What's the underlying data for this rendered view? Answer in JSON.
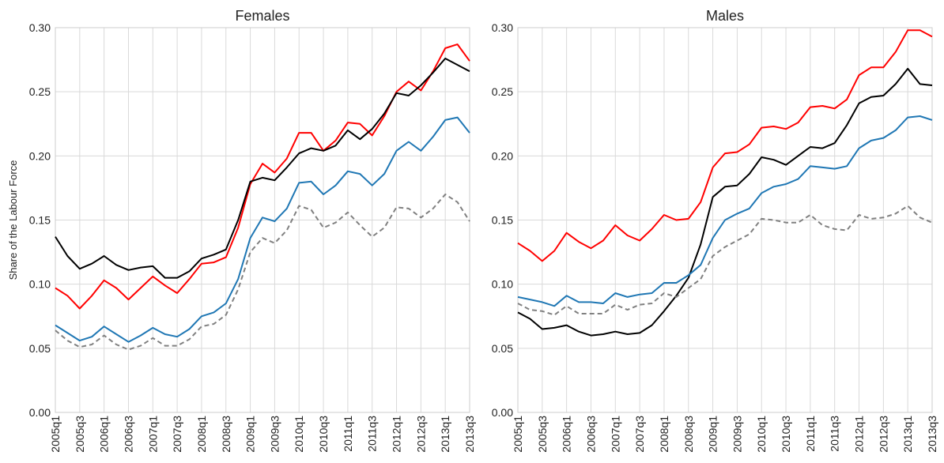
{
  "chart_data": [
    {
      "type": "line",
      "title": "Females",
      "ylabel": "Share of the Labour Force",
      "grid": true,
      "categories": [
        "2005q1",
        null,
        "2005q3",
        null,
        "2006q1",
        null,
        "2006q3",
        null,
        "2007q1",
        null,
        "2007q3",
        null,
        "2008q1",
        null,
        "2008q3",
        null,
        "2009q1",
        null,
        "2009q3",
        null,
        "2010q1",
        null,
        "2010q3",
        null,
        "2011q1",
        null,
        "2011q3",
        null,
        "2012q1",
        null,
        "2012q3",
        null,
        "2013q1",
        null,
        "2013q3"
      ],
      "ylim": [
        0,
        0.3
      ],
      "yticks": [
        {
          "value": 0,
          "label": "0.00"
        },
        {
          "value": 0.05,
          "label": "0.05"
        },
        {
          "value": 0.1,
          "label": "0.10"
        },
        {
          "value": 0.15,
          "label": "0.15"
        },
        {
          "value": 0.2,
          "label": "0.20"
        },
        {
          "value": 0.25,
          "label": "0.25"
        },
        {
          "value": 0.3,
          "label": "0.30"
        }
      ],
      "series": [
        {
          "color": "#ff0000",
          "linestyle": "solid",
          "values": [
            0.097,
            0.091,
            0.081,
            0.091,
            0.103,
            0.097,
            0.088,
            0.097,
            0.106,
            0.099,
            0.093,
            0.104,
            0.116,
            0.117,
            0.121,
            0.144,
            0.178,
            0.194,
            0.187,
            0.198,
            0.218,
            0.218,
            0.204,
            0.212,
            0.226,
            0.225,
            0.216,
            0.231,
            0.25,
            0.258,
            0.251,
            0.266,
            0.284,
            0.287,
            0.274
          ]
        },
        {
          "color": "#000000",
          "linestyle": "solid",
          "values": [
            0.137,
            0.122,
            0.112,
            0.116,
            0.122,
            0.115,
            0.111,
            0.113,
            0.114,
            0.105,
            0.105,
            0.11,
            0.12,
            0.123,
            0.127,
            0.15,
            0.18,
            0.183,
            0.181,
            0.191,
            0.202,
            0.206,
            0.204,
            0.208,
            0.22,
            0.213,
            0.221,
            0.233,
            0.249,
            0.247,
            0.255,
            0.265,
            0.276,
            0.271,
            0.266
          ]
        },
        {
          "color": "#1f77b4",
          "linestyle": "solid",
          "values": [
            0.068,
            0.062,
            0.056,
            0.059,
            0.067,
            0.061,
            0.055,
            0.06,
            0.066,
            0.061,
            0.059,
            0.065,
            0.075,
            0.078,
            0.085,
            0.104,
            0.136,
            0.152,
            0.149,
            0.159,
            0.179,
            0.18,
            0.17,
            0.177,
            0.188,
            0.186,
            0.177,
            0.186,
            0.204,
            0.211,
            0.204,
            0.215,
            0.228,
            0.23,
            0.218
          ]
        },
        {
          "color": "#808080",
          "linestyle": "dashed",
          "values": [
            0.064,
            0.056,
            0.051,
            0.053,
            0.06,
            0.053,
            0.049,
            0.052,
            0.058,
            0.052,
            0.052,
            0.057,
            0.067,
            0.069,
            0.076,
            0.096,
            0.125,
            0.136,
            0.132,
            0.142,
            0.161,
            0.158,
            0.144,
            0.148,
            0.156,
            0.146,
            0.137,
            0.144,
            0.16,
            0.159,
            0.152,
            0.159,
            0.17,
            0.164,
            0.149
          ]
        }
      ]
    },
    {
      "type": "line",
      "title": "Males",
      "grid": true,
      "categories": [
        "2005q1",
        null,
        "2005q3",
        null,
        "2006q1",
        null,
        "2006q3",
        null,
        "2007q1",
        null,
        "2007q3",
        null,
        "2008q1",
        null,
        "2008q3",
        null,
        "2009q1",
        null,
        "2009q3",
        null,
        "2010q1",
        null,
        "2010q3",
        null,
        "2011q1",
        null,
        "2011q3",
        null,
        "2012q1",
        null,
        "2012q3",
        null,
        "2013q1",
        null,
        "2013q3"
      ],
      "ylim": [
        0,
        0.3
      ],
      "yticks": [
        {
          "value": 0,
          "label": "0.00"
        },
        {
          "value": 0.05,
          "label": "0.05"
        },
        {
          "value": 0.1,
          "label": "0.10"
        },
        {
          "value": 0.15,
          "label": "0.15"
        },
        {
          "value": 0.2,
          "label": "0.20"
        },
        {
          "value": 0.25,
          "label": "0.25"
        },
        {
          "value": 0.3,
          "label": "0.30"
        }
      ],
      "series": [
        {
          "color": "#ff0000",
          "linestyle": "solid",
          "values": [
            0.132,
            0.126,
            0.118,
            0.126,
            0.14,
            0.133,
            0.128,
            0.134,
            0.146,
            0.138,
            0.134,
            0.143,
            0.154,
            0.15,
            0.151,
            0.164,
            0.191,
            0.202,
            0.203,
            0.209,
            0.222,
            0.223,
            0.221,
            0.226,
            0.238,
            0.239,
            0.237,
            0.244,
            0.263,
            0.269,
            0.269,
            0.281,
            0.298,
            0.298,
            0.293
          ]
        },
        {
          "color": "#000000",
          "linestyle": "solid",
          "values": [
            0.078,
            0.073,
            0.065,
            0.066,
            0.068,
            0.063,
            0.06,
            0.061,
            0.063,
            0.061,
            0.062,
            0.068,
            0.079,
            0.091,
            0.105,
            0.131,
            0.168,
            0.176,
            0.177,
            0.186,
            0.199,
            0.197,
            0.193,
            0.2,
            0.207,
            0.206,
            0.21,
            0.224,
            0.241,
            0.246,
            0.247,
            0.256,
            0.268,
            0.256,
            0.255
          ]
        },
        {
          "color": "#1f77b4",
          "linestyle": "solid",
          "values": [
            0.09,
            0.088,
            0.086,
            0.083,
            0.091,
            0.086,
            0.086,
            0.085,
            0.093,
            0.09,
            0.092,
            0.093,
            0.101,
            0.101,
            0.107,
            0.115,
            0.136,
            0.15,
            0.155,
            0.159,
            0.171,
            0.176,
            0.178,
            0.182,
            0.192,
            0.191,
            0.19,
            0.192,
            0.206,
            0.212,
            0.214,
            0.22,
            0.23,
            0.231,
            0.228
          ]
        },
        {
          "color": "#808080",
          "linestyle": "dashed",
          "values": [
            0.085,
            0.08,
            0.079,
            0.076,
            0.083,
            0.077,
            0.077,
            0.077,
            0.084,
            0.08,
            0.084,
            0.085,
            0.093,
            0.09,
            0.097,
            0.104,
            0.122,
            0.129,
            0.134,
            0.139,
            0.151,
            0.15,
            0.148,
            0.148,
            0.154,
            0.146,
            0.143,
            0.142,
            0.154,
            0.151,
            0.152,
            0.155,
            0.161,
            0.152,
            0.148
          ]
        }
      ]
    }
  ]
}
